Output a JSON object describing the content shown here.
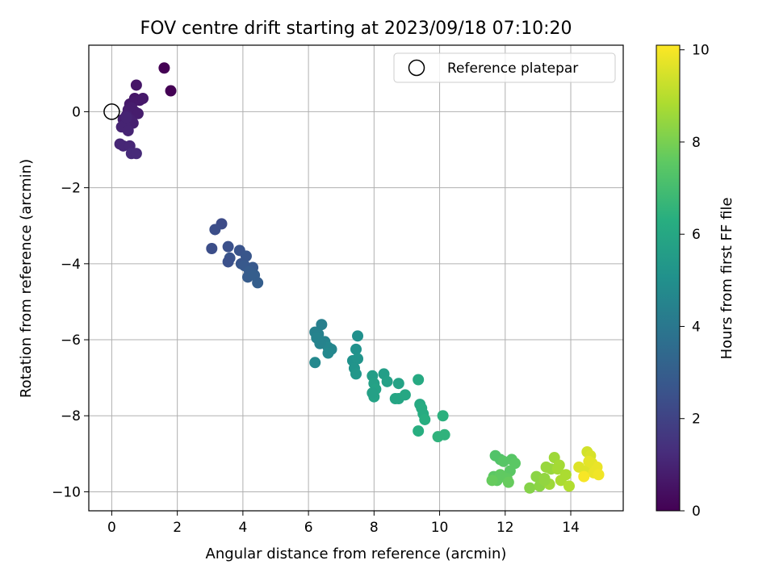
{
  "chart_data": {
    "type": "scatter",
    "title": "FOV centre drift starting at 2023/09/18 07:10:20",
    "xlabel": "Angular distance from reference (arcmin)",
    "ylabel": "Rotation from reference (arcmin)",
    "xlim": [
      -0.7,
      15.6
    ],
    "ylim": [
      -10.5,
      1.75
    ],
    "xticks": [
      0,
      2,
      4,
      6,
      8,
      10,
      12,
      14
    ],
    "yticks": [
      0,
      -2,
      -4,
      -6,
      -8,
      -10
    ],
    "xtick_labels": [
      "0",
      "2",
      "4",
      "6",
      "8",
      "10",
      "12",
      "14"
    ],
    "ytick_labels": [
      "0",
      "−2",
      "−4",
      "−6",
      "−8",
      "−10"
    ],
    "grid": true,
    "legend": {
      "position": "top-right",
      "entries": [
        "Reference platepar"
      ]
    },
    "reference_point": {
      "x": 0,
      "y": 0
    },
    "colorbar": {
      "label": "Hours from first FF file",
      "range": [
        0,
        10.1
      ],
      "ticks": [
        0,
        2,
        4,
        6,
        8,
        10
      ],
      "tick_labels": [
        "0",
        "2",
        "4",
        "6",
        "8",
        "10"
      ],
      "colormap": "viridis"
    },
    "series": [
      {
        "x": [
          1.6,
          1.8,
          0.75,
          0.7,
          0.55,
          0.65,
          0.85,
          0.95,
          0.6,
          0.5,
          0.7,
          0.8,
          0.45,
          0.35,
          0.55,
          0.65,
          0.4,
          0.3,
          0.5,
          0.25,
          0.35,
          0.55,
          0.6,
          0.75,
          0.45
        ],
        "y": [
          1.15,
          0.55,
          0.7,
          0.35,
          0.2,
          0.25,
          0.3,
          0.35,
          0.1,
          0.05,
          0.0,
          -0.05,
          -0.1,
          -0.2,
          -0.2,
          -0.3,
          -0.35,
          -0.4,
          -0.5,
          -0.85,
          -0.9,
          -0.9,
          -1.1,
          -1.1,
          -0.15
        ],
        "hours": [
          0.0,
          0.0,
          0.6,
          0.6,
          0.7,
          0.7,
          0.7,
          0.7,
          0.8,
          0.8,
          0.8,
          0.8,
          0.9,
          0.9,
          0.9,
          0.9,
          1.0,
          1.0,
          1.0,
          1.1,
          1.1,
          1.1,
          1.2,
          1.2,
          1.0
        ]
      },
      {
        "x": [
          3.35,
          3.15,
          3.05,
          3.55,
          3.9,
          3.6,
          4.1,
          3.95,
          4.05,
          4.3,
          4.2,
          4.15,
          4.35,
          4.45,
          3.55
        ],
        "y": [
          -2.95,
          -3.1,
          -3.6,
          -3.55,
          -3.65,
          -3.85,
          -3.8,
          -4.0,
          -4.05,
          -4.1,
          -4.2,
          -4.35,
          -4.3,
          -4.5,
          -3.95
        ],
        "hours": [
          2.3,
          2.4,
          2.4,
          2.5,
          2.6,
          2.6,
          2.7,
          2.7,
          2.8,
          2.8,
          2.9,
          2.9,
          3.0,
          3.0,
          2.5
        ]
      },
      {
        "x": [
          6.4,
          6.2,
          6.3,
          6.25,
          6.5,
          6.6,
          6.7,
          6.6,
          6.2,
          7.5,
          7.45,
          7.35,
          7.5,
          7.4,
          7.45,
          6.35
        ],
        "y": [
          -5.6,
          -5.8,
          -5.85,
          -5.95,
          -6.05,
          -6.2,
          -6.25,
          -6.35,
          -6.6,
          -5.9,
          -6.25,
          -6.55,
          -6.5,
          -6.75,
          -6.9,
          -6.1
        ],
        "hours": [
          4.3,
          4.4,
          4.4,
          4.5,
          4.5,
          4.6,
          4.6,
          4.7,
          4.7,
          5.0,
          5.1,
          5.1,
          5.2,
          5.2,
          5.3,
          4.5
        ]
      },
      {
        "x": [
          8.3,
          7.95,
          8.4,
          8.0,
          8.75,
          8.05,
          8.0,
          8.65,
          8.75,
          8.95,
          9.35,
          9.4,
          9.45,
          9.5,
          9.55,
          9.35,
          10.1,
          9.95,
          10.15,
          7.95
        ],
        "y": [
          -6.9,
          -6.95,
          -7.1,
          -7.15,
          -7.15,
          -7.3,
          -7.5,
          -7.55,
          -7.55,
          -7.45,
          -7.05,
          -7.7,
          -7.8,
          -7.95,
          -8.1,
          -8.4,
          -8.0,
          -8.55,
          -8.5,
          -7.4
        ],
        "hours": [
          5.6,
          5.6,
          5.7,
          5.7,
          5.8,
          5.8,
          5.8,
          5.9,
          5.9,
          6.0,
          6.1,
          6.1,
          6.2,
          6.2,
          6.3,
          6.3,
          6.4,
          6.5,
          6.5,
          5.7
        ]
      },
      {
        "x": [
          11.7,
          11.85,
          11.95,
          12.2,
          12.3,
          12.15,
          11.65,
          11.85,
          12.05,
          11.75,
          12.1,
          11.6
        ],
        "y": [
          -9.05,
          -9.15,
          -9.2,
          -9.15,
          -9.25,
          -9.45,
          -9.6,
          -9.55,
          -9.65,
          -9.7,
          -9.75,
          -9.7
        ],
        "hours": [
          7.3,
          7.3,
          7.4,
          7.4,
          7.5,
          7.5,
          7.5,
          7.6,
          7.6,
          7.6,
          7.7,
          7.7
        ]
      },
      {
        "x": [
          12.75,
          12.95,
          13.05,
          13.2,
          13.25,
          13.4,
          13.5,
          13.35,
          13.6,
          13.65,
          13.7,
          13.85,
          13.95,
          13.2
        ],
        "y": [
          -9.9,
          -9.6,
          -9.85,
          -9.65,
          -9.35,
          -9.4,
          -9.1,
          -9.8,
          -9.4,
          -9.3,
          -9.7,
          -9.55,
          -9.85,
          -9.7
        ],
        "hours": [
          8.2,
          8.3,
          8.3,
          8.4,
          8.5,
          8.5,
          8.6,
          8.6,
          8.7,
          8.7,
          8.8,
          8.8,
          8.9,
          8.4
        ]
      },
      {
        "x": [
          14.5,
          14.6,
          14.25,
          14.45,
          14.65,
          14.8,
          14.7,
          14.85,
          14.4,
          14.55
        ],
        "y": [
          -8.95,
          -9.05,
          -9.35,
          -9.45,
          -9.25,
          -9.35,
          -9.5,
          -9.55,
          -9.6,
          -9.2
        ],
        "hours": [
          9.4,
          9.5,
          9.6,
          9.6,
          9.7,
          9.8,
          9.8,
          9.9,
          10.0,
          9.7
        ]
      }
    ]
  }
}
